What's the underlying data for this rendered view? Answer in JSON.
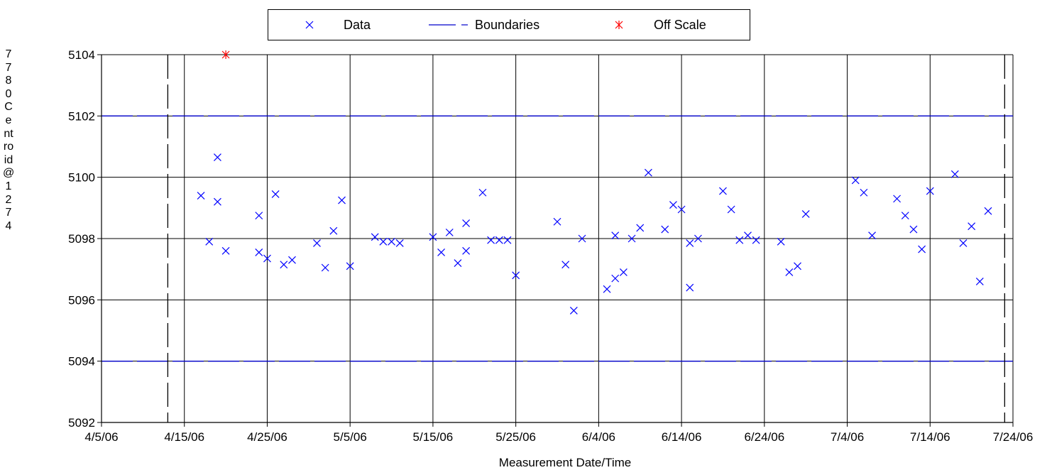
{
  "chart_data": {
    "type": "scatter",
    "xlabel": "Measurement  Date/Time",
    "ylabel": "7780 Centroid @ 1274",
    "xlim": [
      "4/5/06",
      "7/24/06"
    ],
    "ylim": [
      5092,
      5104
    ],
    "x_ticks": [
      "4/5/06",
      "4/15/06",
      "4/25/06",
      "5/5/06",
      "5/15/06",
      "5/25/06",
      "6/4/06",
      "6/14/06",
      "6/24/06",
      "7/4/06",
      "7/14/06",
      "7/24/06"
    ],
    "y_ticks": [
      "5092",
      "5094",
      "5096",
      "5098",
      "5100",
      "5102",
      "5104"
    ],
    "grid": true,
    "legend": {
      "position": "top",
      "entries": [
        "Data",
        "Boundaries",
        "Off Scale"
      ]
    },
    "colors": {
      "data": "#0000ff",
      "boundaries": "#0000cc",
      "off_scale": "#ff0000"
    },
    "boundaries": {
      "upper": 5102,
      "lower": 5094,
      "start": "4/13/06",
      "end": "7/23/06"
    },
    "series": [
      {
        "name": "Data",
        "points": [
          [
            "4/17/06",
            5099.4
          ],
          [
            "4/18/06",
            5097.9
          ],
          [
            "4/19/06",
            5100.65
          ],
          [
            "4/19/06",
            5099.2
          ],
          [
            "4/20/06",
            5097.6
          ],
          [
            "4/24/06",
            5098.75
          ],
          [
            "4/24/06",
            5097.55
          ],
          [
            "4/25/06",
            5097.35
          ],
          [
            "4/26/06",
            5099.45
          ],
          [
            "4/27/06",
            5097.15
          ],
          [
            "4/28/06",
            5097.3
          ],
          [
            "5/1/06",
            5097.85
          ],
          [
            "5/2/06",
            5097.05
          ],
          [
            "5/3/06",
            5098.25
          ],
          [
            "5/4/06",
            5099.25
          ],
          [
            "5/5/06",
            5097.1
          ],
          [
            "5/8/06",
            5098.05
          ],
          [
            "5/9/06",
            5097.9
          ],
          [
            "5/10/06",
            5097.9
          ],
          [
            "5/11/06",
            5097.85
          ],
          [
            "5/15/06",
            5098.05
          ],
          [
            "5/16/06",
            5097.55
          ],
          [
            "5/17/06",
            5098.2
          ],
          [
            "5/18/06",
            5097.2
          ],
          [
            "5/19/06",
            5097.6
          ],
          [
            "5/19/06",
            5098.5
          ],
          [
            "5/21/06",
            5099.5
          ],
          [
            "5/22/06",
            5097.95
          ],
          [
            "5/23/06",
            5097.95
          ],
          [
            "5/24/06",
            5097.95
          ],
          [
            "5/25/06",
            5096.8
          ],
          [
            "5/30/06",
            5098.55
          ],
          [
            "5/31/06",
            5097.15
          ],
          [
            "6/1/06",
            5095.65
          ],
          [
            "6/2/06",
            5098.0
          ],
          [
            "6/5/06",
            5096.35
          ],
          [
            "6/6/06",
            5098.1
          ],
          [
            "6/6/06",
            5096.7
          ],
          [
            "6/7/06",
            5096.9
          ],
          [
            "6/8/06",
            5098.0
          ],
          [
            "6/9/06",
            5098.35
          ],
          [
            "6/10/06",
            5100.15
          ],
          [
            "6/12/06",
            5098.3
          ],
          [
            "6/13/06",
            5099.1
          ],
          [
            "6/14/06",
            5098.95
          ],
          [
            "6/15/06",
            5097.85
          ],
          [
            "6/15/06",
            5096.4
          ],
          [
            "6/16/06",
            5098.0
          ],
          [
            "6/19/06",
            5099.55
          ],
          [
            "6/20/06",
            5098.95
          ],
          [
            "6/21/06",
            5097.95
          ],
          [
            "6/22/06",
            5098.1
          ],
          [
            "6/23/06",
            5097.95
          ],
          [
            "6/26/06",
            5097.9
          ],
          [
            "6/27/06",
            5096.9
          ],
          [
            "6/28/06",
            5097.1
          ],
          [
            "6/29/06",
            5098.8
          ],
          [
            "7/5/06",
            5099.9
          ],
          [
            "7/6/06",
            5099.5
          ],
          [
            "7/7/06",
            5098.1
          ],
          [
            "7/10/06",
            5099.3
          ],
          [
            "7/11/06",
            5098.75
          ],
          [
            "7/12/06",
            5098.3
          ],
          [
            "7/13/06",
            5097.65
          ],
          [
            "7/14/06",
            5099.55
          ],
          [
            "7/17/06",
            5100.1
          ],
          [
            "7/18/06",
            5097.85
          ],
          [
            "7/19/06",
            5098.4
          ],
          [
            "7/20/06",
            5096.6
          ],
          [
            "7/21/06",
            5098.9
          ]
        ]
      },
      {
        "name": "Off Scale",
        "points": [
          [
            "4/20/06",
            5104
          ]
        ]
      }
    ]
  }
}
